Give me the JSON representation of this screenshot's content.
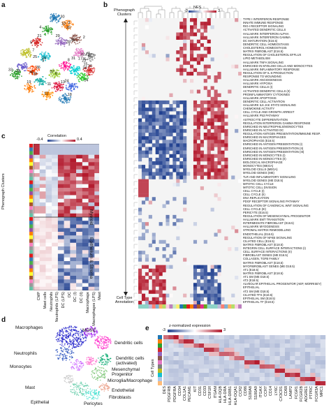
{
  "panels": {
    "a": {
      "letter": "a",
      "cluster_labels": [
        "30",
        "3",
        "4",
        "5",
        "1",
        "2",
        "32",
        "22",
        "7",
        "9",
        "8",
        "15",
        "6",
        "36",
        "23",
        "11",
        "13",
        "24",
        "14",
        "12",
        "18",
        "19",
        "33",
        "16",
        "10",
        "20",
        "29",
        "21",
        "28",
        "35",
        "17",
        "27",
        "25",
        "26",
        "31",
        "34",
        "37",
        "38",
        "40"
      ]
    },
    "b": {
      "letter": "b",
      "phenograph_clusters_label": "Phenograph Clusters",
      "cell_type_annotation_label": "Cell Type Annotation",
      "legend_title": "NES",
      "legend_min": "-3",
      "legend_max": "3",
      "pathways": [
        "TYPE I INTERFERON RESPONSE",
        "INNATE IMMUNE RESPONSE",
        "RIG-I RECEPTOR SIGNALING",
        "ACTIVATED DENDRITIC CELLS",
        "HALLMARK INTERFERON ALPHA",
        "HALLMARK INTERFERON GAMMA",
        "DC MATURATION (E16.5)",
        "DENDRITIC CELL HOMEOSTASIS",
        "CHOLESTEROL HOMEOSTASIS",
        "MATRIX FIBROBLAST (E16.5)",
        "REGULATION OF CHOLESTEROL EFFLUX",
        "LIPID METABOLISM",
        "HALLMARK TNFA SIGNALING",
        "ENRICHED IN MYELOID CELLS AND MONOCYTES",
        "HALLMARK INFLAMMATORY RESPONSE",
        "REGULATION OF IL-6 PRODUCTION",
        "RESPONSE TO WOUNDING",
        "HALLMARK ANGIOGENESIS",
        "HALLMARK HYPOXIA",
        "DENDRITIC CELLS (I)",
        "ACTIVATED DENDRITIC CELLS (II)",
        "PROINFLAMMATORY CYTOKINES",
        "HALLMARK APOPTOSIS",
        "DENDRITIC CELL ACTIVATION",
        "HALLMARK IL6 JAK STAT3 SIGNALING",
        "CHEMOKINE ACTIVITY",
        "CELL CYCLE AND GROWTH ARREST",
        "HALLMARK P53 PATHWAY",
        "ASTROCYTE DIFFERENTIATION",
        "REGULATION INTERFERON GAMMA RESPONSE",
        "ENRICHED IN NEUTROPHILS/MONOCYTES",
        "ENRICHED IN ACTIVATED DC",
        "REGULATION ANTIGEN PRESENTATION/IMMUNE RESP.",
        "ENRICHED IN MACROPHAGES",
        "MACROPHAGE (E16.5)",
        "ENRICHED IN ANTIGEN PRESENTATION (I)",
        "ENRICHED IN ANTIGEN PRESENTATION (II)",
        "ENRICHED IN ANTIGEN PRESENTATION (III)",
        "ENRICHED IN MONOCYTES (I)",
        "ENRICHED IN MONOCYTES (II)",
        "BIOLOGICAL MACROPHAGE",
        "MONOCYTES (MEGA)",
        "MYELOID CELLS (MEGA)",
        "MYELOID GENES (ME)",
        "TLR AND INFLAMMATORY SIGNALING",
        "MYELOID GENES (ME D18.5)",
        "MITOTIC CELL CYCLE",
        "MITOTIC CELL DIVISION",
        "CELL CYCLE (I)",
        "CELL CYCLE (II)",
        "DNA REPLICATION",
        "PDGF RECEPTOR SIGNALING PATHWAY",
        "REGULATION OF CANONICAL WNT SIGNALING",
        "CELL CYCLE (III)",
        "PERICYTE (E16.5)",
        "REGULATION OF MESENCHYMAL PROGENITOR",
        "HALLMARK EMT TRANSITION",
        "INTERMEDIATE FIBROBLAST (E16.5)",
        "HALLMARK MYOGENESIS",
        "STROMAL MATRIX REMODELLING",
        "ENDOTHELIAL (E16.5)",
        "REGULATION OF NFKB SIGNALING",
        "CILIATED CELL (E16.5)",
        "MATRIX FIBROBLAST (E18.5)",
        "INTEGRIN CELL SURFACE INTERACTIONS (I)",
        "CELL SURFACE INTERACTIONS (II)",
        "FIBROBLAST GENES (ME E16.5)",
        "COLLAGEN, TGFB FAMILY",
        "MATRIX FIBROBLAST (E18.5)",
        "MYOFIBROBLAST GENES (ME D18.5)",
        "AT1 (E18.5)",
        "MATRIX FIBROBLAST (E18.5)",
        "AT1 SM (ME D18.5)",
        "AT2 (E18.5)",
        "ALVEOLAR EPITHELIAL PROGENITOR (AEP, MORRISEY)",
        "EPITHELIAL",
        "AT2 SM (ME D18.5)",
        "CILIATED TFS (E18.5)",
        "EPITHELIAL SM (E18.5)",
        "EPITHELIAL TF (E18.5)"
      ]
    },
    "c": {
      "letter": "c",
      "colorbar_title": "Correlation",
      "colorbar_min": "-0.4",
      "colorbar_max": "0.4",
      "y_axis_label": "Phenograph Clusters",
      "group_labels": [
        "Myeloid",
        "Epithelium & Stroma"
      ],
      "x_labels": [
        "CMP",
        "Mast cells",
        "Neutrophils",
        "Neutrophils (LPS)",
        "DC (LPS)",
        "DC",
        "DC (I)",
        "DC (II)",
        "Macrophage",
        "Macrophages (LPS)",
        "Mast"
      ]
    },
    "d": {
      "letter": "d",
      "labels": [
        "Macrophages",
        "MDSC",
        "Neutrophils",
        "Dendritic cells",
        "Monocytes",
        "Dendritic cells (activated)",
        "Mesenchymal Progenitor",
        "Microglia/Macrophage",
        "Mast",
        "Endothelial",
        "Fibroblasts",
        "Epithelial",
        "Pericytes"
      ]
    },
    "e": {
      "letter": "e",
      "colorbar_title": "z-normalized expression",
      "colorbar_min": "-3",
      "colorbar_max": "3",
      "y_axis_label": "Cell Types",
      "genes": [
        "DES",
        "PDGFRB",
        "PDGFRA",
        "CD34",
        "COL1A1",
        "PECAM1",
        "KIT",
        "CD31",
        "CD33",
        "CSF1R",
        "ITGAM",
        "HLA-DQB",
        "HLA-DRA",
        "HLA-DRB1",
        "HLA-DQA1",
        "CCR2",
        "CD86",
        "S100A8",
        "S100A9",
        "ITGAX",
        "CCR7",
        "CD14",
        "LY6C",
        "CX3CR1",
        "CD68",
        "LAMP2",
        "FCGR1",
        "FCGR2B",
        "ADGRE1",
        "PTPRC",
        "FCGR3A",
        "MRC1"
      ]
    }
  }
}
